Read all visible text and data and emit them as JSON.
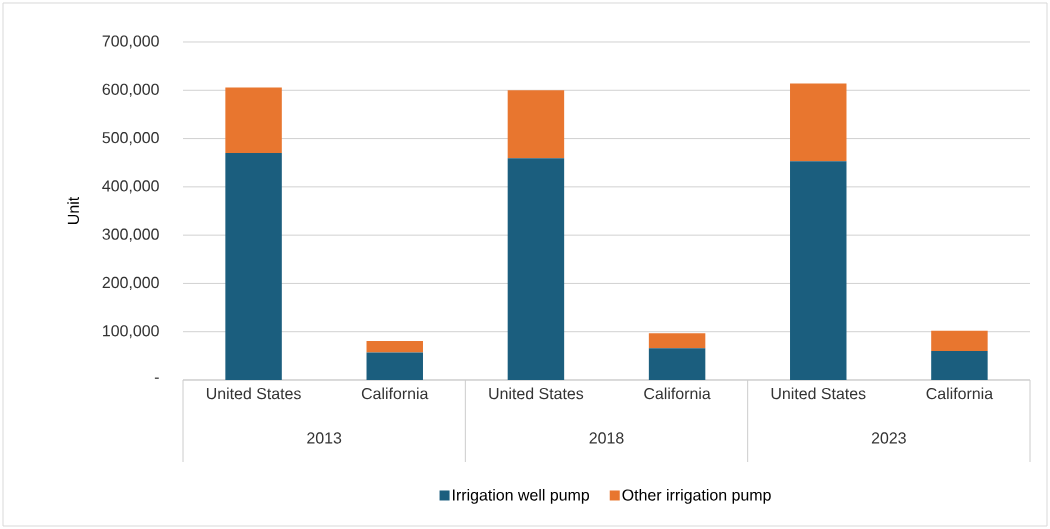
{
  "chart_data": {
    "type": "bar",
    "stacked": true,
    "ylabel": "Unit",
    "categories": [
      "United States",
      "California",
      "United States",
      "California",
      "United States",
      "California"
    ],
    "annotations": [
      "2013",
      "2018",
      "2023"
    ],
    "series": [
      {
        "name": "Irrigation well pump",
        "color": "#1b5e7e",
        "values": [
          470000,
          57000,
          459000,
          66000,
          453000,
          60000
        ]
      },
      {
        "name": "Other irrigation pump",
        "color": "#e8762f",
        "values": [
          136000,
          24000,
          141000,
          31000,
          161000,
          42000
        ]
      }
    ],
    "ylim": [
      0,
      700000
    ],
    "yticks": [
      {
        "value": 0,
        "label": "-"
      },
      {
        "value": 100000,
        "label": "100,000"
      },
      {
        "value": 200000,
        "label": "200,000"
      },
      {
        "value": 300000,
        "label": "300,000"
      },
      {
        "value": 400000,
        "label": "400,000"
      },
      {
        "value": 500000,
        "label": "500,000"
      },
      {
        "value": 600000,
        "label": "600,000"
      },
      {
        "value": 700000,
        "label": "700,000"
      }
    ],
    "grid": "y",
    "legend": "bottom"
  }
}
